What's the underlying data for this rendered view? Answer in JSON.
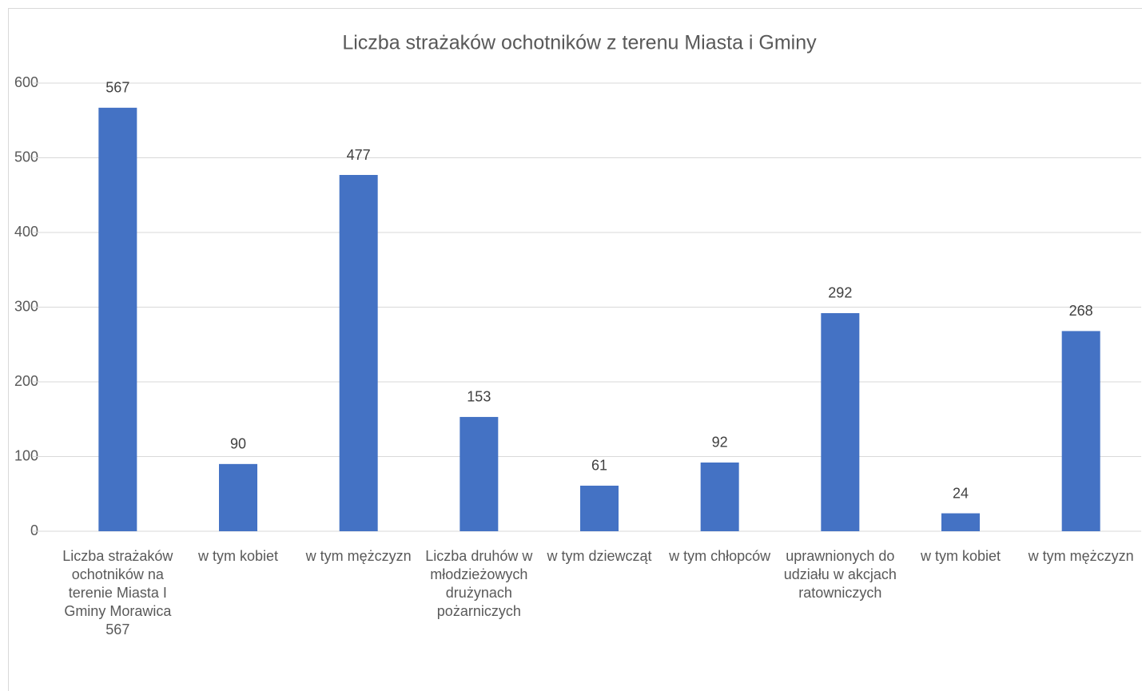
{
  "chart_data": {
    "type": "bar",
    "title": "Liczba strażaków ochotników z terenu Miasta i Gminy",
    "categories": [
      "Liczba strażaków ochotników na terenie Miasta I Gminy Morawica 567",
      "w tym kobiet",
      "w tym mężczyzn",
      "Liczba druhów w młodzieżowych drużynach pożarniczych",
      "w tym dziewcząt",
      "w tym chłopców",
      "uprawnionych do udziału w akcjach ratowniczych",
      "w tym kobiet",
      "w tym mężczyzn"
    ],
    "values": [
      567,
      90,
      477,
      153,
      61,
      92,
      292,
      24,
      268
    ],
    "color": "#4472c4",
    "ylim": [
      0,
      600
    ],
    "yticks": [
      0,
      100,
      200,
      300,
      400,
      500,
      600
    ],
    "grid": true
  }
}
